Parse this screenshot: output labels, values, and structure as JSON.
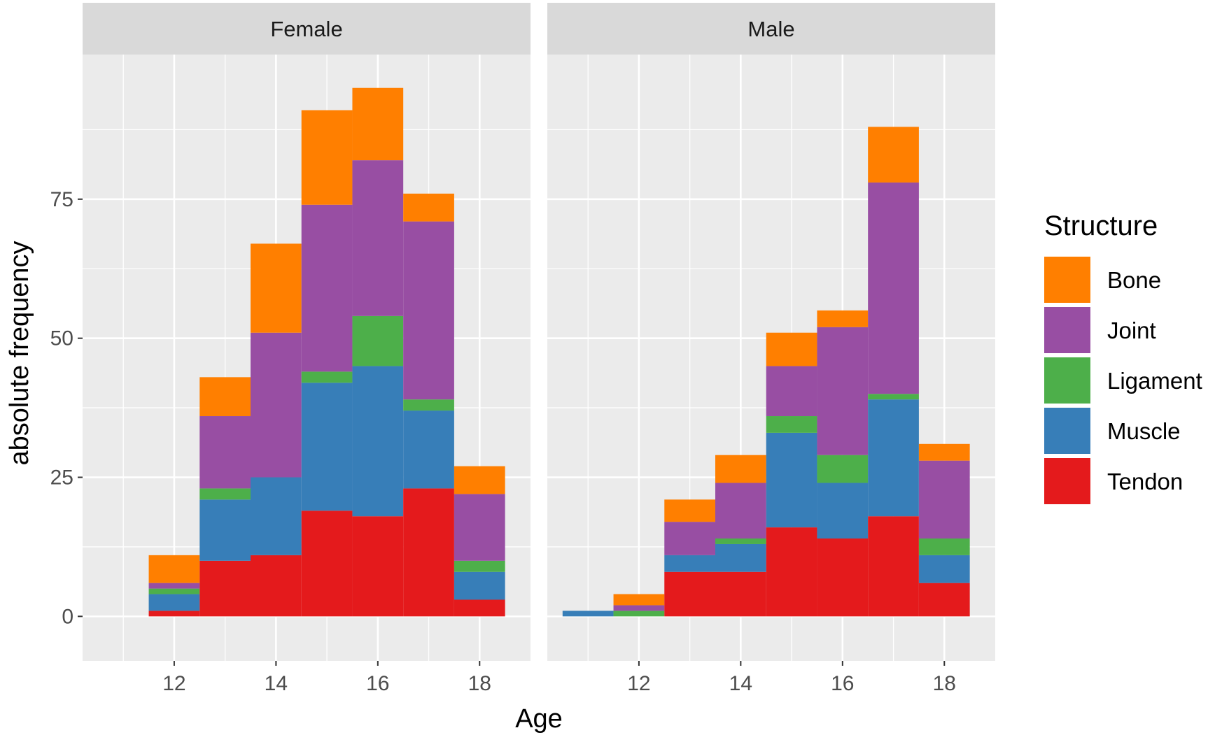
{
  "chart_data": {
    "type": "bar",
    "subtype": "stacked-histogram",
    "xlabel": "Age",
    "ylabel": "absolute frequency",
    "xlim": [
      10.2,
      19.0
    ],
    "ylim": [
      -8,
      101
    ],
    "x_ticks": [
      12,
      14,
      16,
      18
    ],
    "y_ticks": [
      0,
      25,
      50,
      75
    ],
    "grid": true,
    "legend": {
      "title": "Structure",
      "position": "right",
      "entries": [
        {
          "name": "Bone",
          "color": "#FF7F00"
        },
        {
          "name": "Joint",
          "color": "#984EA3"
        },
        {
          "name": "Ligament",
          "color": "#4DAF4A"
        },
        {
          "name": "Muscle",
          "color": "#377EB8"
        },
        {
          "name": "Tendon",
          "color": "#E41A1C"
        }
      ]
    },
    "stack_order_bottom_to_top": [
      "Tendon",
      "Muscle",
      "Ligament",
      "Joint",
      "Bone"
    ],
    "facets": [
      {
        "label": "Female",
        "ages": [
          12,
          13,
          14,
          15,
          16,
          17,
          18
        ],
        "series": [
          {
            "name": "Tendon",
            "values": [
              1,
              10,
              11,
              19,
              18,
              23,
              3
            ]
          },
          {
            "name": "Muscle",
            "values": [
              3,
              11,
              14,
              23,
              27,
              14,
              5
            ]
          },
          {
            "name": "Ligament",
            "values": [
              1,
              2,
              0,
              2,
              9,
              2,
              2
            ]
          },
          {
            "name": "Joint",
            "values": [
              1,
              13,
              26,
              30,
              28,
              32,
              12
            ]
          },
          {
            "name": "Bone",
            "values": [
              5,
              7,
              16,
              17,
              13,
              5,
              5
            ]
          }
        ]
      },
      {
        "label": "Male",
        "ages": [
          11,
          12,
          13,
          14,
          15,
          16,
          17,
          18
        ],
        "series": [
          {
            "name": "Tendon",
            "values": [
              0,
              0,
              8,
              8,
              16,
              14,
              18,
              6
            ]
          },
          {
            "name": "Muscle",
            "values": [
              1,
              0,
              3,
              5,
              17,
              10,
              21,
              5
            ]
          },
          {
            "name": "Ligament",
            "values": [
              0,
              1,
              0,
              1,
              3,
              5,
              1,
              3
            ]
          },
          {
            "name": "Joint",
            "values": [
              0,
              1,
              6,
              10,
              9,
              23,
              38,
              14
            ]
          },
          {
            "name": "Bone",
            "values": [
              0,
              2,
              4,
              5,
              6,
              3,
              10,
              3
            ]
          }
        ]
      }
    ]
  }
}
